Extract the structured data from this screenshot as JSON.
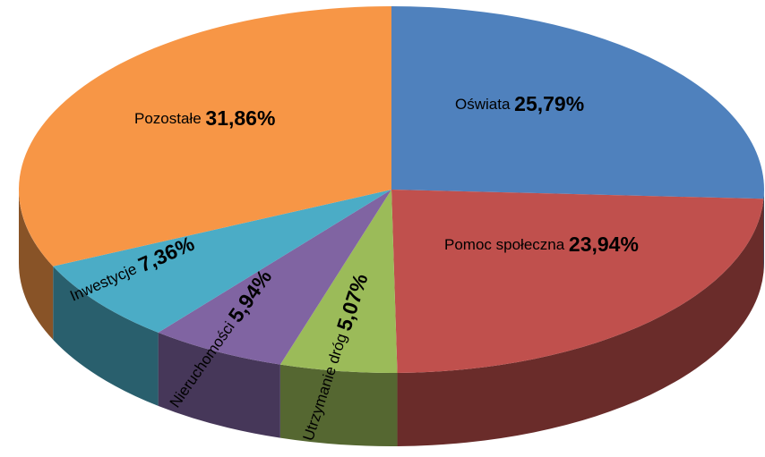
{
  "chart_data": {
    "type": "pie",
    "categories": [
      "Oświata",
      "Pomoc społeczna",
      "Utrzymanie dróg",
      "Nieruchomości",
      "Inwestycje",
      "Pozostałe"
    ],
    "values": [
      25.79,
      23.94,
      5.07,
      5.94,
      7.36,
      31.86
    ],
    "value_labels": [
      "25,79%",
      "23,94%",
      "5,07%",
      "5,94%",
      "7,36%",
      "31,86%"
    ],
    "colors": [
      "#4f81bd",
      "#c0504d",
      "#9bbb59",
      "#8064a2",
      "#4bacc6",
      "#f79646"
    ]
  }
}
